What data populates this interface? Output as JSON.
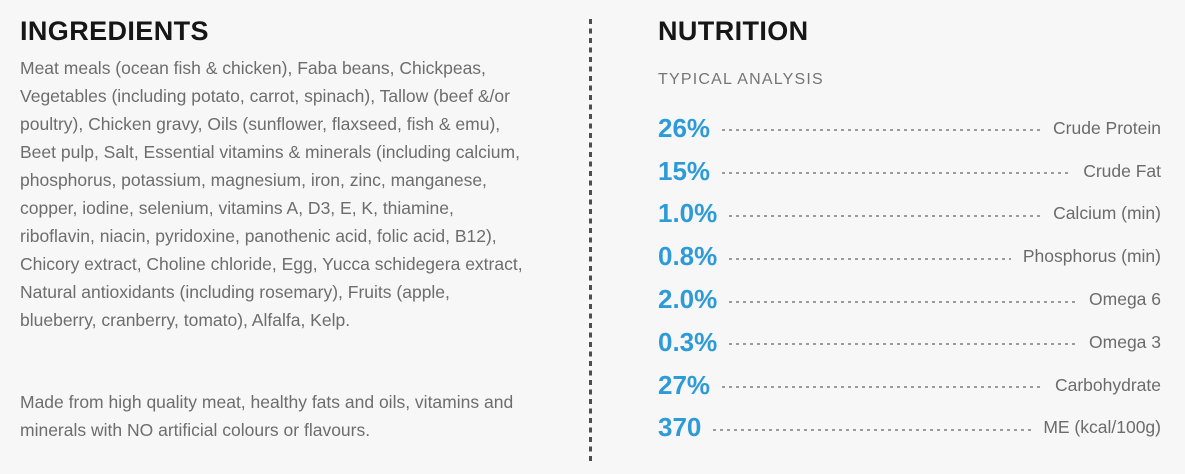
{
  "page": {
    "background_color": "#f7f7f8",
    "accent_blue": "#2d9bd8"
  },
  "ingredients": {
    "title": "INGREDIENTS",
    "body": "Meat meals (ocean fish & chicken), Faba beans, Chickpeas, Vegetables (including potato, carrot, spinach), Tallow (beef &/or poultry), Chicken gravy, Oils (sunflower, flaxseed, fish & emu), Beet pulp, Salt, Essential vitamins & minerals (including calcium, phosphorus, potassium, magnesium, iron, zinc, manganese, copper, iodine, selenium, vitamins A, D3, E, K, thiamine, riboflavin, niacin, pyridoxine, panothenic acid, folic acid, B12), Chicory extract, Choline chloride, Egg, Yucca schidegera extract, Natural antioxidants (including rosemary), Fruits (apple, blueberry, cranberry, tomato), Alfalfa, Kelp.",
    "footnote": "Made from high quality meat, healthy fats and oils, vitamins and minerals with NO artificial colours or flavours."
  },
  "nutrition": {
    "title": "NUTRITION",
    "subtitle": "TYPICAL ANALYSIS",
    "rows": [
      {
        "value": "26%",
        "label": "Crude Protein"
      },
      {
        "value": "15%",
        "label": "Crude Fat"
      },
      {
        "value": "1.0%",
        "label": "Calcium (min)"
      },
      {
        "value": "0.8%",
        "label": "Phosphorus (min)"
      },
      {
        "value": "2.0%",
        "label": "Omega 6"
      },
      {
        "value": "0.3%",
        "label": "Omega 3"
      },
      {
        "value": "27%",
        "label": "Carbohydrate"
      },
      {
        "value": "370",
        "label": "ME (kcal/100g)"
      }
    ]
  }
}
